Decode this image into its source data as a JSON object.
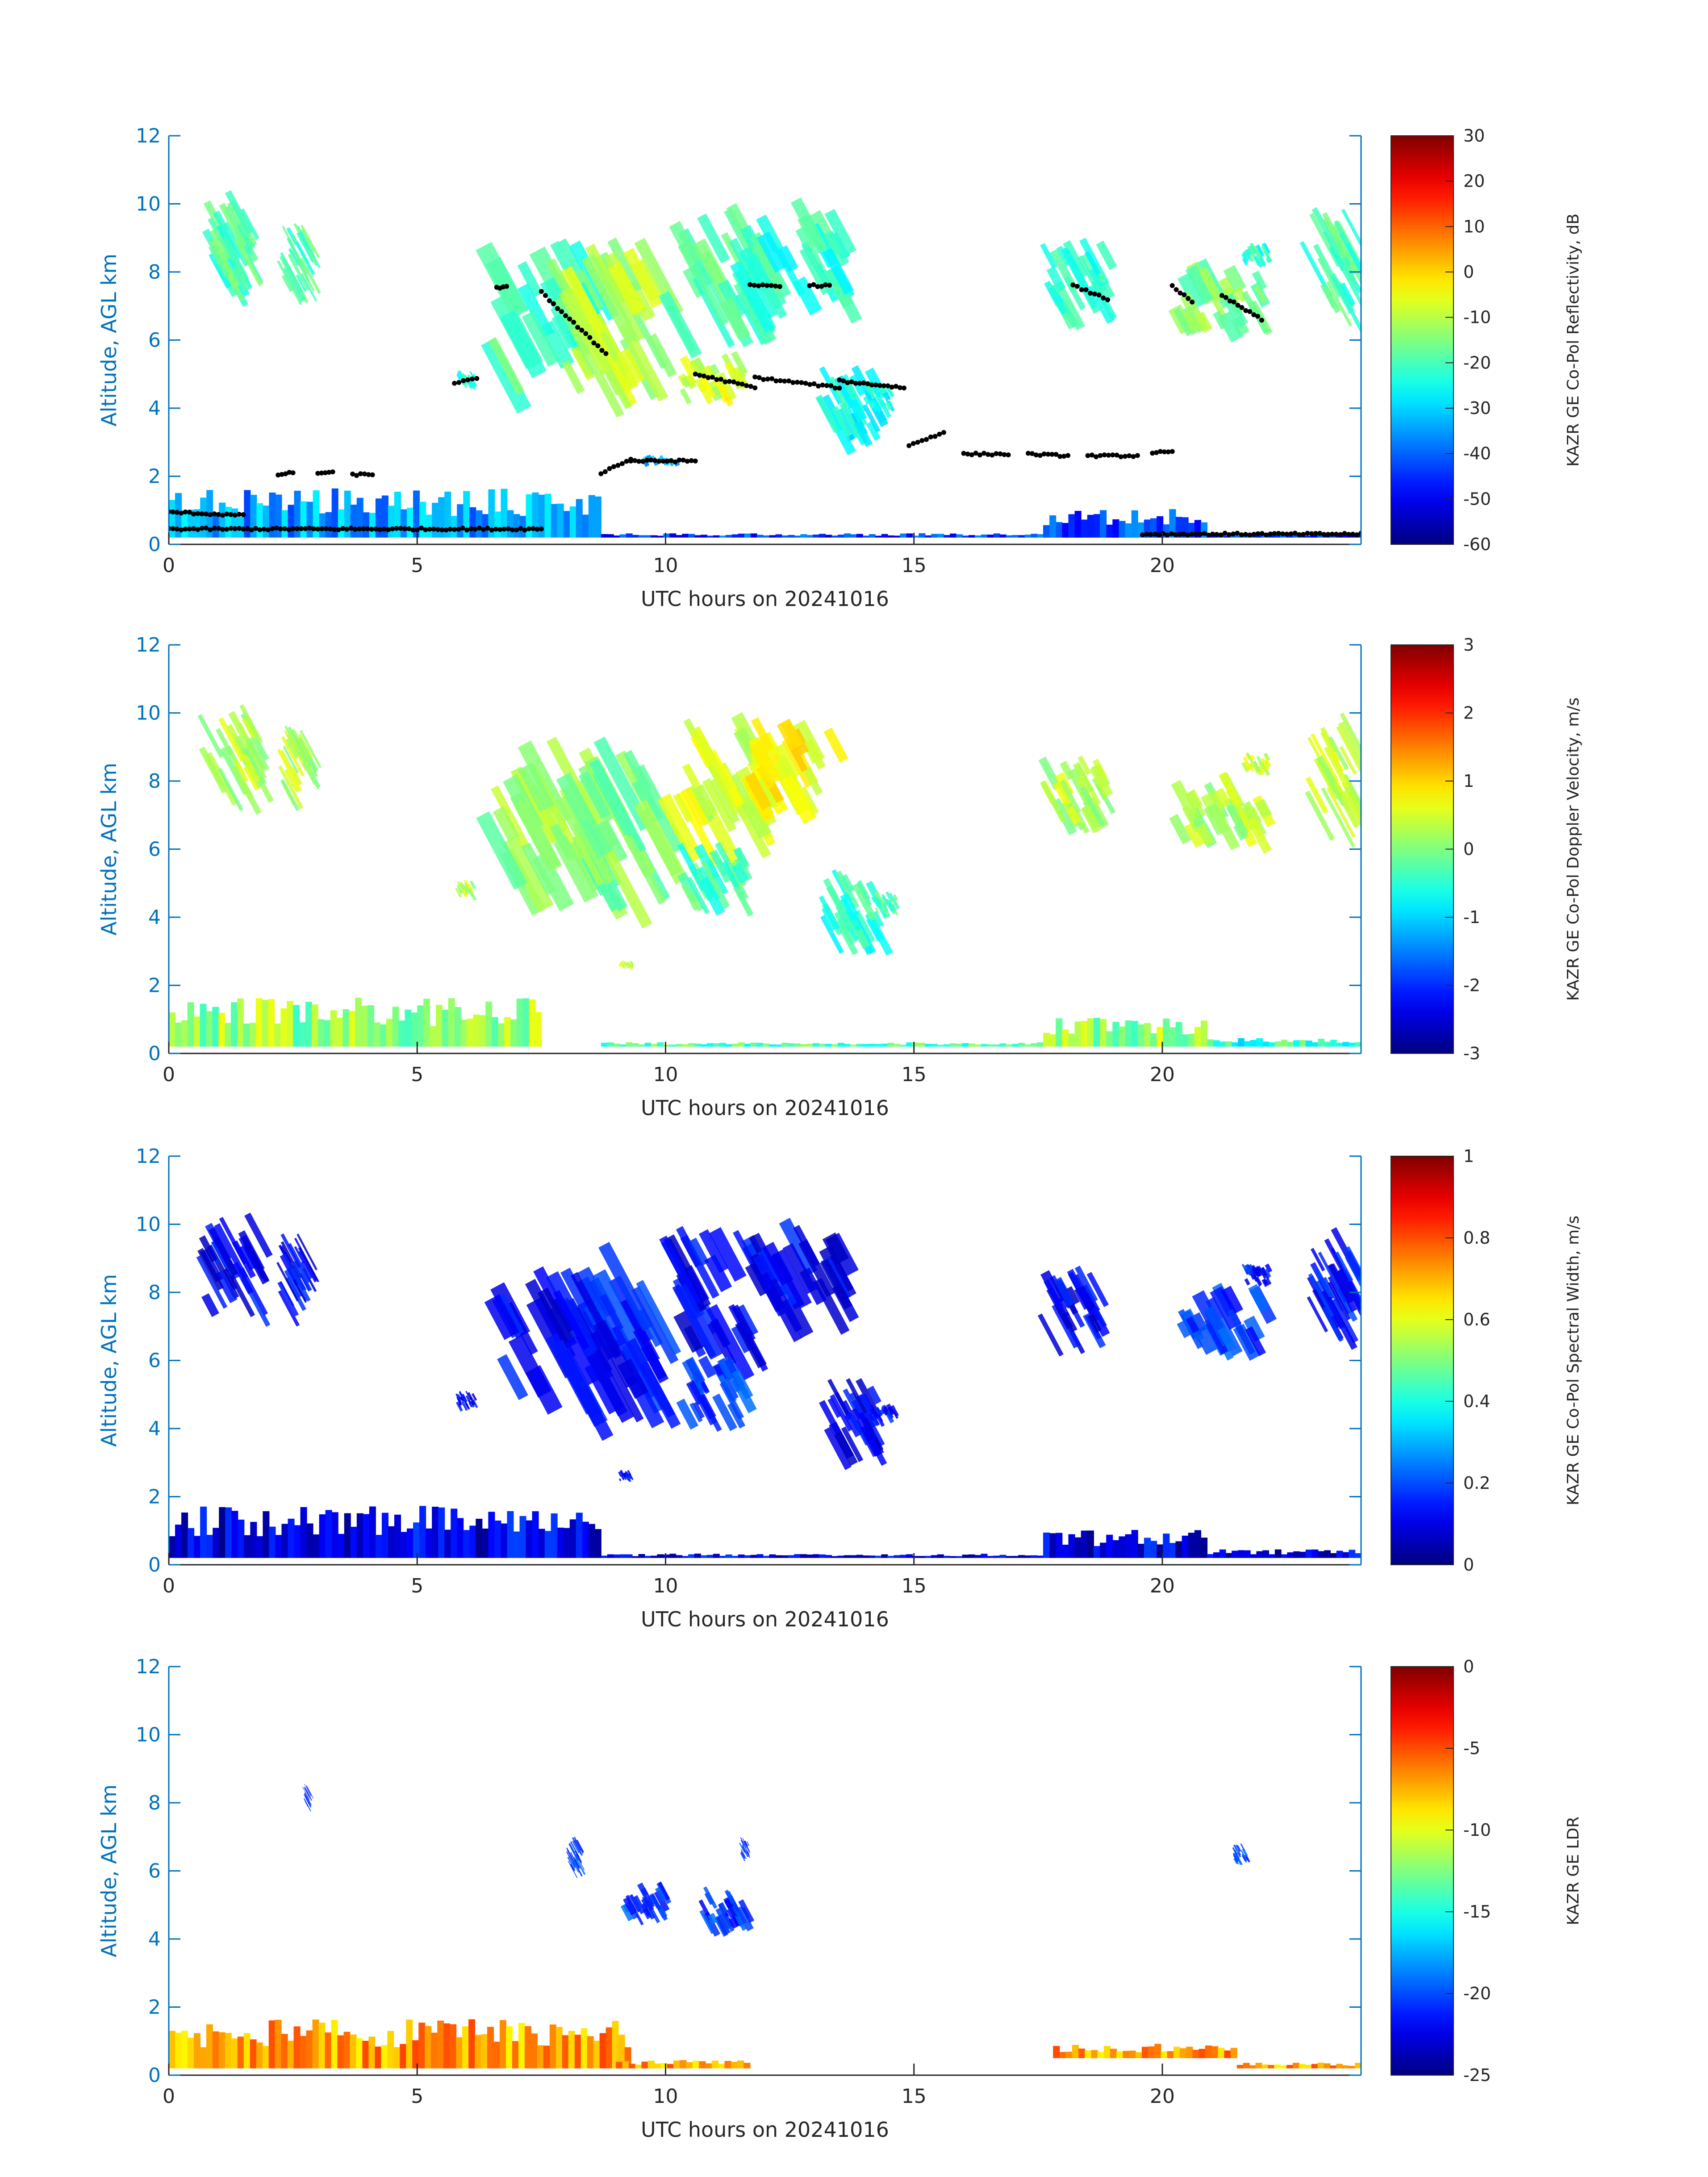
{
  "figure": {
    "colors": {
      "axis": "#0072BD",
      "tick_text": "#262626",
      "background": "#ffffff",
      "cbar_scale": "jet"
    }
  },
  "chart_data": [
    {
      "type": "heatmap",
      "id": "reflectivity",
      "xlabel": "UTC hours on 20241016",
      "ylabel": "Altitude, AGL km",
      "xlim": [
        0,
        24
      ],
      "ylim": [
        0,
        12
      ],
      "xticks": [
        0,
        5,
        10,
        15,
        20
      ],
      "yticks": [
        0,
        2,
        4,
        6,
        8,
        10,
        12
      ],
      "colorbar": {
        "label": "KAZR GE Co-Pol Reflectivity, dB",
        "range": [
          -60,
          30
        ],
        "ticks": [
          30,
          20,
          10,
          0,
          -10,
          -20,
          -30,
          -40,
          -50,
          -60
        ]
      },
      "cloud_base_markers": [
        {
          "x": [
            0.0,
            1.5
          ],
          "y": [
            0.95,
            0.85
          ]
        },
        {
          "x": [
            2.2,
            2.5
          ],
          "y": [
            2.05,
            2.1
          ]
        },
        {
          "x": [
            3.0,
            3.3
          ],
          "y": [
            2.1,
            2.1
          ]
        },
        {
          "x": [
            3.7,
            4.1
          ],
          "y": [
            2.05,
            2.05
          ]
        },
        {
          "x": [
            5.75,
            6.2
          ],
          "y": [
            4.75,
            4.85
          ]
        },
        {
          "x": [
            6.6,
            6.8
          ],
          "y": [
            7.55,
            7.55
          ]
        },
        {
          "x": [
            7.5,
            8.8
          ],
          "y": [
            7.4,
            5.6
          ]
        },
        {
          "x": [
            8.7,
            9.3
          ],
          "y": [
            2.1,
            2.5
          ]
        },
        {
          "x": [
            9.3,
            10.6
          ],
          "y": [
            2.45,
            2.45
          ]
        },
        {
          "x": [
            10.6,
            11.8
          ],
          "y": [
            5.0,
            4.6
          ]
        },
        {
          "x": [
            11.8,
            13.5
          ],
          "y": [
            4.9,
            4.6
          ]
        },
        {
          "x": [
            13.5,
            14.8
          ],
          "y": [
            4.8,
            4.6
          ]
        },
        {
          "x": [
            14.9,
            15.6
          ],
          "y": [
            2.9,
            3.3
          ]
        },
        {
          "x": [
            16.0,
            16.9
          ],
          "y": [
            2.65,
            2.65
          ]
        },
        {
          "x": [
            17.3,
            18.1
          ],
          "y": [
            2.65,
            2.6
          ]
        },
        {
          "x": [
            18.5,
            19.5
          ],
          "y": [
            2.6,
            2.6
          ]
        },
        {
          "x": [
            19.8,
            20.2
          ],
          "y": [
            2.7,
            2.7
          ]
        },
        {
          "x": [
            11.7,
            12.3
          ],
          "y": [
            7.6,
            7.6
          ]
        },
        {
          "x": [
            12.9,
            13.3
          ],
          "y": [
            7.6,
            7.6
          ]
        },
        {
          "x": [
            18.2,
            18.9
          ],
          "y": [
            7.6,
            7.2
          ]
        },
        {
          "x": [
            20.2,
            20.6
          ],
          "y": [
            7.6,
            7.1
          ]
        },
        {
          "x": [
            21.2,
            22.0
          ],
          "y": [
            7.3,
            6.6
          ]
        },
        {
          "x": [
            0.0,
            7.5
          ],
          "y": [
            0.45,
            0.45
          ]
        },
        {
          "x": [
            19.6,
            24.0
          ],
          "y": [
            0.3,
            0.3
          ]
        }
      ]
    },
    {
      "type": "heatmap",
      "id": "doppler_velocity",
      "xlabel": "UTC hours on 20241016",
      "ylabel": "Altitude, AGL km",
      "xlim": [
        0,
        24
      ],
      "ylim": [
        0,
        12
      ],
      "xticks": [
        0,
        5,
        10,
        15,
        20
      ],
      "yticks": [
        0,
        2,
        4,
        6,
        8,
        10,
        12
      ],
      "colorbar": {
        "label": "KAZR GE Co-Pol Doppler Velocity, m/s",
        "range": [
          -3,
          3
        ],
        "ticks": [
          3,
          2,
          1,
          0,
          -1,
          -2,
          -3
        ]
      }
    },
    {
      "type": "heatmap",
      "id": "spectral_width",
      "xlabel": "UTC hours on 20241016",
      "ylabel": "Altitude, AGL km",
      "xlim": [
        0,
        24
      ],
      "ylim": [
        0,
        12
      ],
      "xticks": [
        0,
        5,
        10,
        15,
        20
      ],
      "yticks": [
        0,
        2,
        4,
        6,
        8,
        10,
        12
      ],
      "colorbar": {
        "label": "KAZR GE Co-Pol Spectral Width, m/s",
        "range": [
          0,
          1
        ],
        "ticks": [
          1,
          0.8,
          0.6,
          0.4,
          0.2,
          0
        ]
      }
    },
    {
      "type": "heatmap",
      "id": "ldr",
      "xlabel": "UTC hours on 20241016",
      "ylabel": "Altitude, AGL km",
      "xlim": [
        0,
        24
      ],
      "ylim": [
        0,
        12
      ],
      "xticks": [
        0,
        5,
        10,
        15,
        20
      ],
      "yticks": [
        0,
        2,
        4,
        6,
        8,
        10,
        12
      ],
      "colorbar": {
        "label": "KAZR GE LDR",
        "range": [
          -25,
          0
        ],
        "ticks": [
          0,
          -5,
          -10,
          -15,
          -20,
          -25
        ]
      }
    }
  ]
}
